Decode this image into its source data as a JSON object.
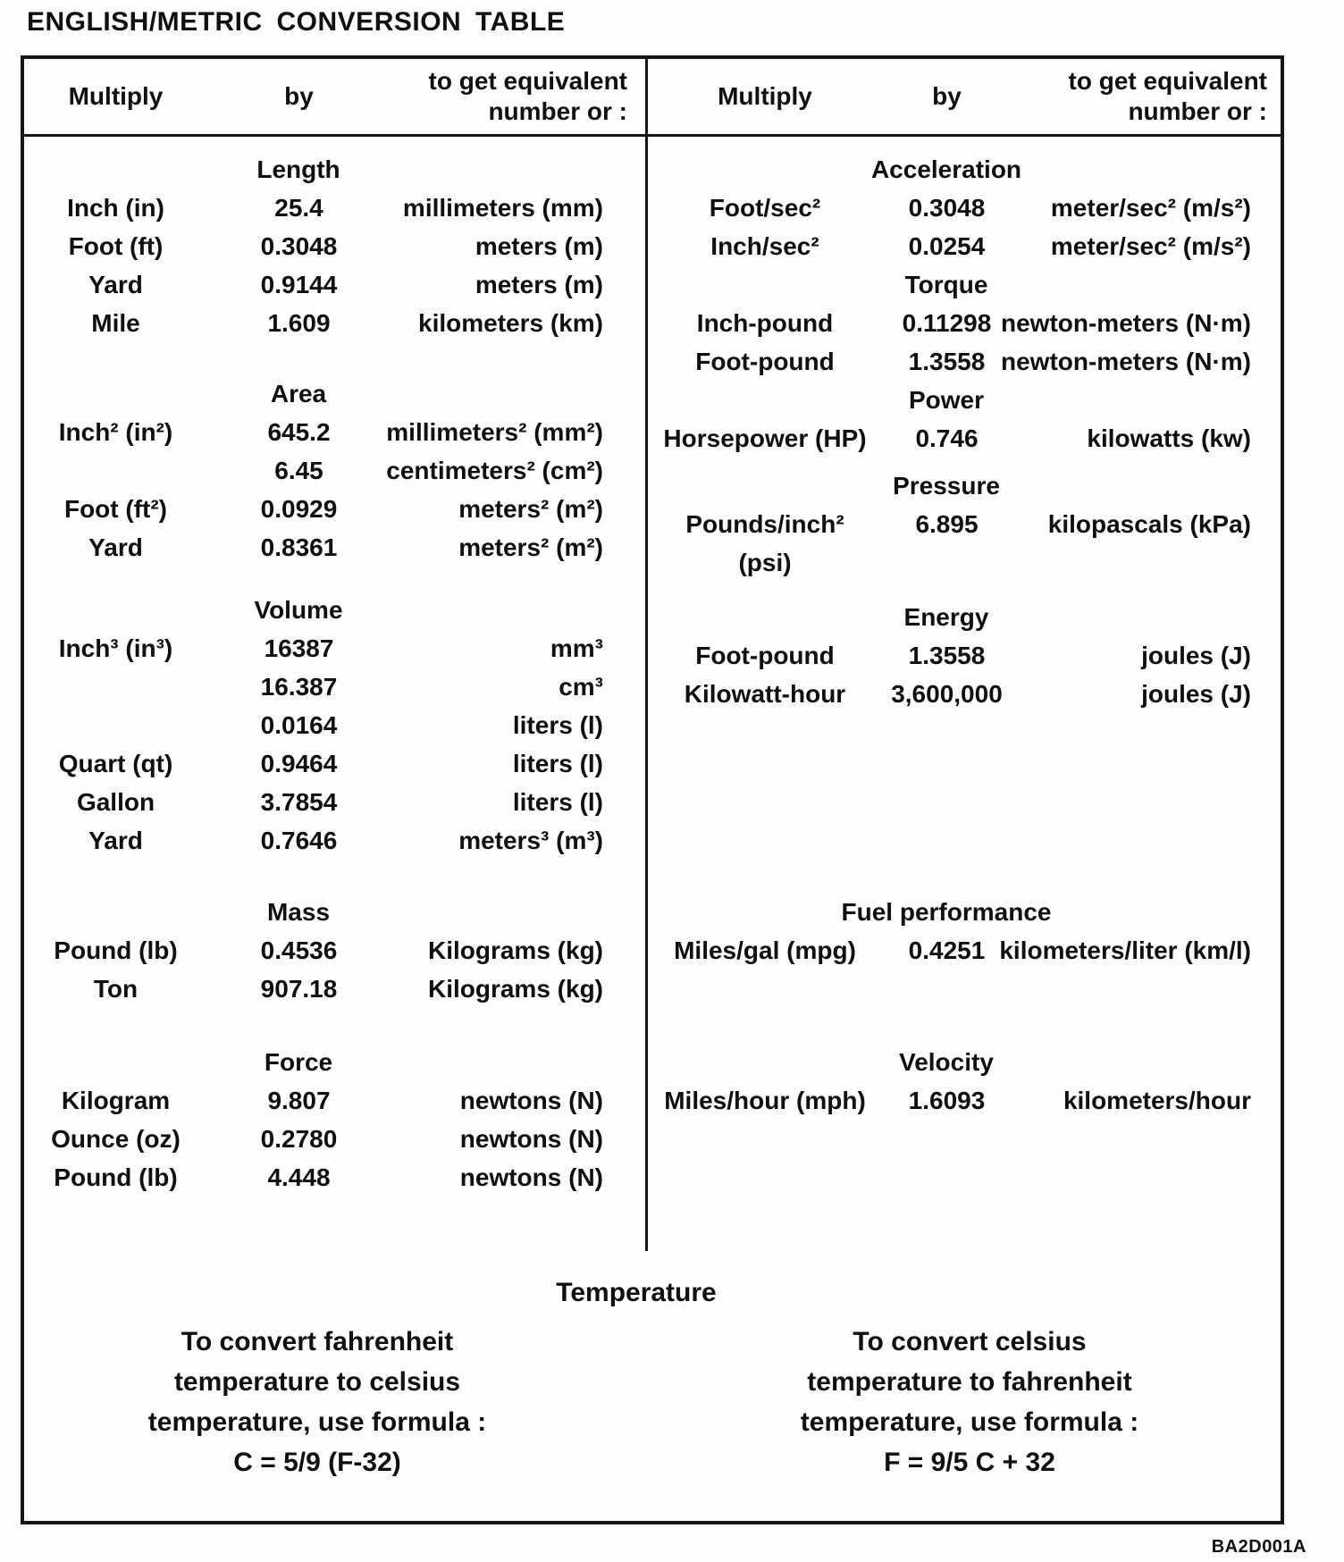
{
  "title": "ENGLISH/METRIC CONVERSION TABLE",
  "doc_code": "BA2D001A",
  "colors": {
    "ink": "#161616",
    "paper": "#fdfdfd"
  },
  "header": {
    "multiply": "Multiply",
    "by": "by",
    "result_line1": "to get equivalent",
    "result_line2": "number or :"
  },
  "left_column": {
    "sections": [
      {
        "heading": "Length",
        "rows": [
          {
            "multiply": "Inch (in)",
            "by": "25.4",
            "result": "millimeters (mm)"
          },
          {
            "multiply": "Foot (ft)",
            "by": "0.3048",
            "result": "meters (m)"
          },
          {
            "multiply": "Yard",
            "by": "0.9144",
            "result": "meters (m)"
          },
          {
            "multiply": "Mile",
            "by": "1.609",
            "result": "kilometers (km)"
          }
        ]
      },
      {
        "heading": "Area",
        "rows": [
          {
            "multiply": "Inch² (in²)",
            "by": "645.2",
            "result": "millimeters² (mm²)"
          },
          {
            "multiply": "",
            "by": "6.45",
            "result": "centimeters² (cm²)"
          },
          {
            "multiply": "Foot (ft²)",
            "by": "0.0929",
            "result": "meters² (m²)"
          },
          {
            "multiply": "Yard",
            "by": "0.8361",
            "result": "meters² (m²)"
          }
        ]
      },
      {
        "heading": "Volume",
        "rows": [
          {
            "multiply": "Inch³ (in³)",
            "by": "16387",
            "result": "mm³"
          },
          {
            "multiply": "",
            "by": "16.387",
            "result": "cm³"
          },
          {
            "multiply": "",
            "by": "0.0164",
            "result": "liters (l)"
          },
          {
            "multiply": "Quart (qt)",
            "by": "0.9464",
            "result": "liters (l)"
          },
          {
            "multiply": "Gallon",
            "by": "3.7854",
            "result": "liters (l)"
          },
          {
            "multiply": "Yard",
            "by": "0.7646",
            "result": "meters³ (m³)"
          }
        ]
      },
      {
        "heading": "Mass",
        "rows": [
          {
            "multiply": "Pound (lb)",
            "by": "0.4536",
            "result": "Kilograms (kg)"
          },
          {
            "multiply": "Ton",
            "by": "907.18",
            "result": "Kilograms (kg)"
          }
        ]
      },
      {
        "heading": "Force",
        "rows": [
          {
            "multiply": "Kilogram",
            "by": "9.807",
            "result": "newtons (N)"
          },
          {
            "multiply": "Ounce (oz)",
            "by": "0.2780",
            "result": "newtons (N)"
          },
          {
            "multiply": "Pound (lb)",
            "by": "4.448",
            "result": "newtons (N)"
          }
        ]
      }
    ]
  },
  "right_column": {
    "sections": [
      {
        "heading": "Acceleration",
        "rows": [
          {
            "multiply": "Foot/sec²",
            "by": "0.3048",
            "result": "meter/sec² (m/s²)"
          },
          {
            "multiply": "Inch/sec²",
            "by": "0.0254",
            "result": "meter/sec² (m/s²)"
          }
        ]
      },
      {
        "heading": "Torque",
        "rows": [
          {
            "multiply": "Inch-pound",
            "by": "0.11298",
            "result": "newton-meters (N·m)"
          },
          {
            "multiply": "Foot-pound",
            "by": "1.3558",
            "result": "newton-meters (N·m)"
          }
        ]
      },
      {
        "heading": "Power",
        "rows": [
          {
            "multiply": "Horsepower (HP)",
            "by": "0.746",
            "result": "kilowatts (kw)"
          }
        ]
      },
      {
        "heading": "Pressure",
        "rows": [
          {
            "multiply": "Pounds/inch²",
            "by": "6.895",
            "result": "kilopascals (kPa)"
          },
          {
            "multiply": "(psi)",
            "by": "",
            "result": ""
          }
        ]
      },
      {
        "heading": "Energy",
        "rows": [
          {
            "multiply": "Foot-pound",
            "by": "1.3558",
            "result": "joules (J)"
          },
          {
            "multiply": "Kilowatt-hour",
            "by": "3,600,000",
            "result": "joules (J)"
          }
        ]
      },
      {
        "heading": "Fuel performance",
        "rows": [
          {
            "multiply": "Miles/gal (mpg)",
            "by": "0.4251",
            "result": "kilometers/liter (km/l)"
          }
        ]
      },
      {
        "heading": "Velocity",
        "rows": [
          {
            "multiply": "Miles/hour (mph)",
            "by": "1.6093",
            "result": "kilometers/hour"
          }
        ]
      }
    ]
  },
  "temperature": {
    "heading": "Temperature",
    "fahrenheit_to_celsius": {
      "lines": [
        "To convert fahrenheit",
        "temperature to celsius",
        "temperature, use formula :"
      ],
      "formula": "C = 5/9 (F-32)"
    },
    "celsius_to_fahrenheit": {
      "lines": [
        "To convert celsius",
        "temperature to fahrenheit",
        "temperature, use formula :"
      ],
      "formula": "F = 9/5 C + 32"
    }
  }
}
